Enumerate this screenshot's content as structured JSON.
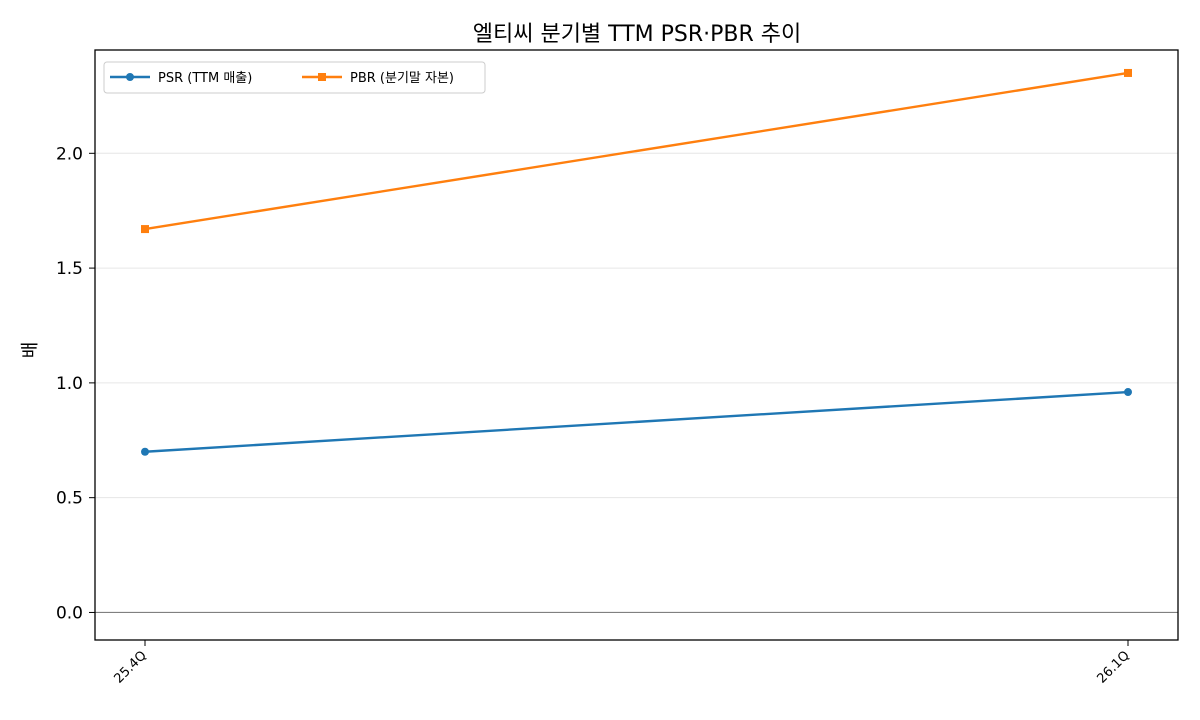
{
  "chart_data": {
    "type": "line",
    "title": "엘티씨 분기별 TTM PSR·PBR 추이",
    "xlabel": "",
    "ylabel": "배",
    "categories": [
      "25.4Q",
      "26.1Q"
    ],
    "series": [
      {
        "name": "PSR (TTM 매출)",
        "values": [
          0.7,
          0.96
        ],
        "color": "#1f77b4",
        "marker": "circle"
      },
      {
        "name": "PBR (분기말 자본)",
        "values": [
          1.67,
          2.35
        ],
        "color": "#ff7f0e",
        "marker": "square"
      }
    ],
    "ylim": [
      -0.12,
      2.45
    ],
    "yticks": [
      "0.0",
      "0.5",
      "1.0",
      "1.5",
      "2.0"
    ],
    "grid": "horizontal",
    "legend_position": "top-left",
    "reference_line": {
      "y": 0,
      "color": "#808080"
    }
  }
}
